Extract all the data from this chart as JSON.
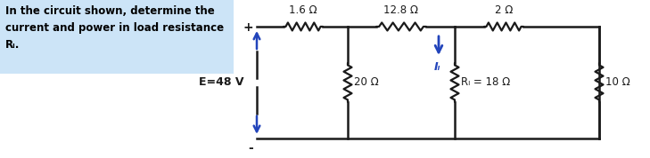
{
  "background_color": "#ffffff",
  "text_color": "#000000",
  "highlight_color": "#cce4f7",
  "problem_text_lines": [
    "In the circuit shown, determine the",
    "current and power in load resistance",
    "Rₗ."
  ],
  "circuit": {
    "voltage_source_label": "E=48 V",
    "r1_label": "1.6 Ω",
    "r2_label": "12.8 Ω",
    "r3_label": "2 Ω",
    "r4_label": "20 Ω",
    "rl_label": "Rₗ = 18 Ω",
    "r5_label": "10 Ω",
    "il_label": "Iₗ",
    "wire_color": "#1a1a1a",
    "resistor_color": "#1a1a1a",
    "arrow_color": "#2244bb",
    "plus_sign": "+",
    "minus_sign": "-"
  }
}
